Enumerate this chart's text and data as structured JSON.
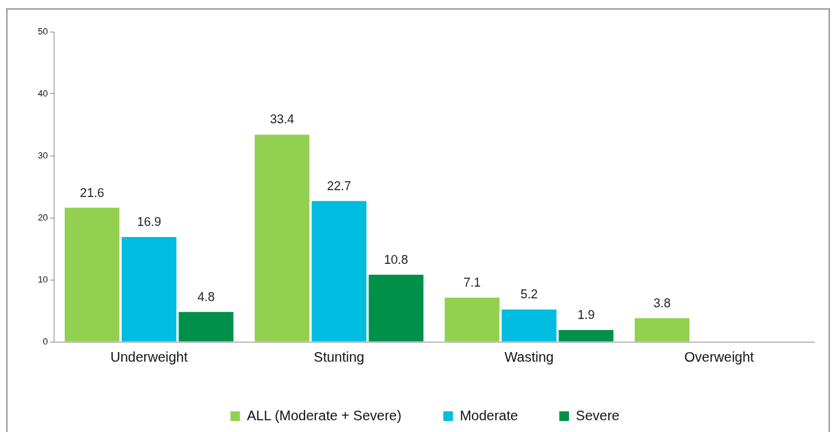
{
  "chart_data": {
    "type": "bar",
    "categories": [
      "Underweight",
      "Stunting",
      "Wasting",
      "Overweight"
    ],
    "series": [
      {
        "name": "ALL (Moderate + Severe)",
        "color": "#92d050",
        "values": [
          21.6,
          33.4,
          7.1,
          3.8
        ]
      },
      {
        "name": "Moderate",
        "color": "#00bce0",
        "values": [
          16.9,
          22.7,
          5.2,
          null
        ]
      },
      {
        "name": "Severe",
        "color": "#00904a",
        "values": [
          4.8,
          10.8,
          1.9,
          null
        ]
      }
    ],
    "ylim": [
      0,
      50
    ],
    "yticks": [
      0,
      10,
      20,
      30,
      40,
      50
    ],
    "grid": false,
    "legend": "bottom",
    "data_labels": true
  }
}
